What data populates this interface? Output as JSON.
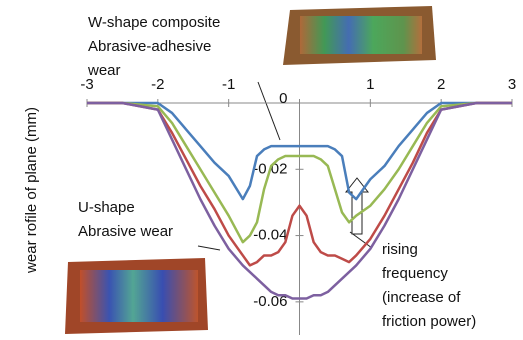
{
  "chart_data": {
    "type": "line",
    "ylabel": "wear rofile of plane  (mm)",
    "x": [
      -3,
      -2.5,
      -2,
      -1.8,
      -1.6,
      -1.4,
      -1.2,
      -1,
      -0.8,
      -0.7,
      -0.6,
      -0.5,
      -0.4,
      -0.3,
      -0.2,
      -0.1,
      0,
      0.1,
      0.2,
      0.3,
      0.4,
      0.5,
      0.6,
      0.7,
      0.8,
      1,
      1.2,
      1.4,
      1.6,
      1.8,
      2,
      2.5,
      3
    ],
    "series": [
      {
        "name": null,
        "color": "#4a7ebb",
        "values": [
          0,
          0,
          0,
          -0.003,
          -0.008,
          -0.013,
          -0.018,
          -0.022,
          -0.029,
          -0.025,
          -0.016,
          -0.014,
          -0.013,
          -0.013,
          -0.013,
          -0.013,
          -0.013,
          -0.013,
          -0.013,
          -0.013,
          -0.013,
          -0.014,
          -0.016,
          -0.027,
          -0.029,
          -0.023,
          -0.019,
          -0.013,
          -0.008,
          -0.003,
          0,
          0,
          0
        ]
      },
      {
        "name": null,
        "color": "#98b954",
        "values": [
          0,
          0,
          -0.001,
          -0.006,
          -0.013,
          -0.02,
          -0.027,
          -0.034,
          -0.042,
          -0.04,
          -0.036,
          -0.026,
          -0.019,
          -0.017,
          -0.016,
          -0.016,
          -0.016,
          -0.016,
          -0.016,
          -0.017,
          -0.019,
          -0.026,
          -0.033,
          -0.036,
          -0.034,
          -0.031,
          -0.026,
          -0.02,
          -0.013,
          -0.006,
          -0.001,
          0,
          0
        ]
      },
      {
        "name": null,
        "color": "#be4b48",
        "values": [
          0,
          0,
          -0.002,
          -0.009,
          -0.017,
          -0.025,
          -0.032,
          -0.04,
          -0.046,
          -0.049,
          -0.048,
          -0.046,
          -0.046,
          -0.045,
          -0.042,
          -0.034,
          -0.031,
          -0.034,
          -0.042,
          -0.045,
          -0.046,
          -0.046,
          -0.047,
          -0.048,
          -0.046,
          -0.041,
          -0.034,
          -0.026,
          -0.018,
          -0.009,
          -0.002,
          0,
          0
        ]
      },
      {
        "name": null,
        "color": "#7d60a0",
        "values": [
          0,
          0,
          -0.002,
          -0.011,
          -0.02,
          -0.029,
          -0.037,
          -0.044,
          -0.049,
          -0.051,
          -0.053,
          -0.055,
          -0.057,
          -0.058,
          -0.058,
          -0.059,
          -0.059,
          -0.059,
          -0.058,
          -0.058,
          -0.057,
          -0.055,
          -0.053,
          -0.051,
          -0.049,
          -0.044,
          -0.037,
          -0.029,
          -0.02,
          -0.011,
          -0.002,
          0,
          0
        ]
      }
    ],
    "xlim": [
      -3,
      3
    ],
    "ylim": [
      -0.07,
      0
    ],
    "xticks": [
      -3,
      -2,
      -1,
      0,
      1,
      2,
      3
    ],
    "yticks": [
      0,
      -0.02,
      -0.04,
      -0.06
    ],
    "annotations": [
      [
        "W-shape composite",
        "Abrasive-adhesive",
        "wear"
      ],
      [
        "U-shape",
        "Abrasive wear"
      ],
      [
        "rising",
        "frequency",
        "(increase of",
        "friction power)"
      ]
    ]
  }
}
